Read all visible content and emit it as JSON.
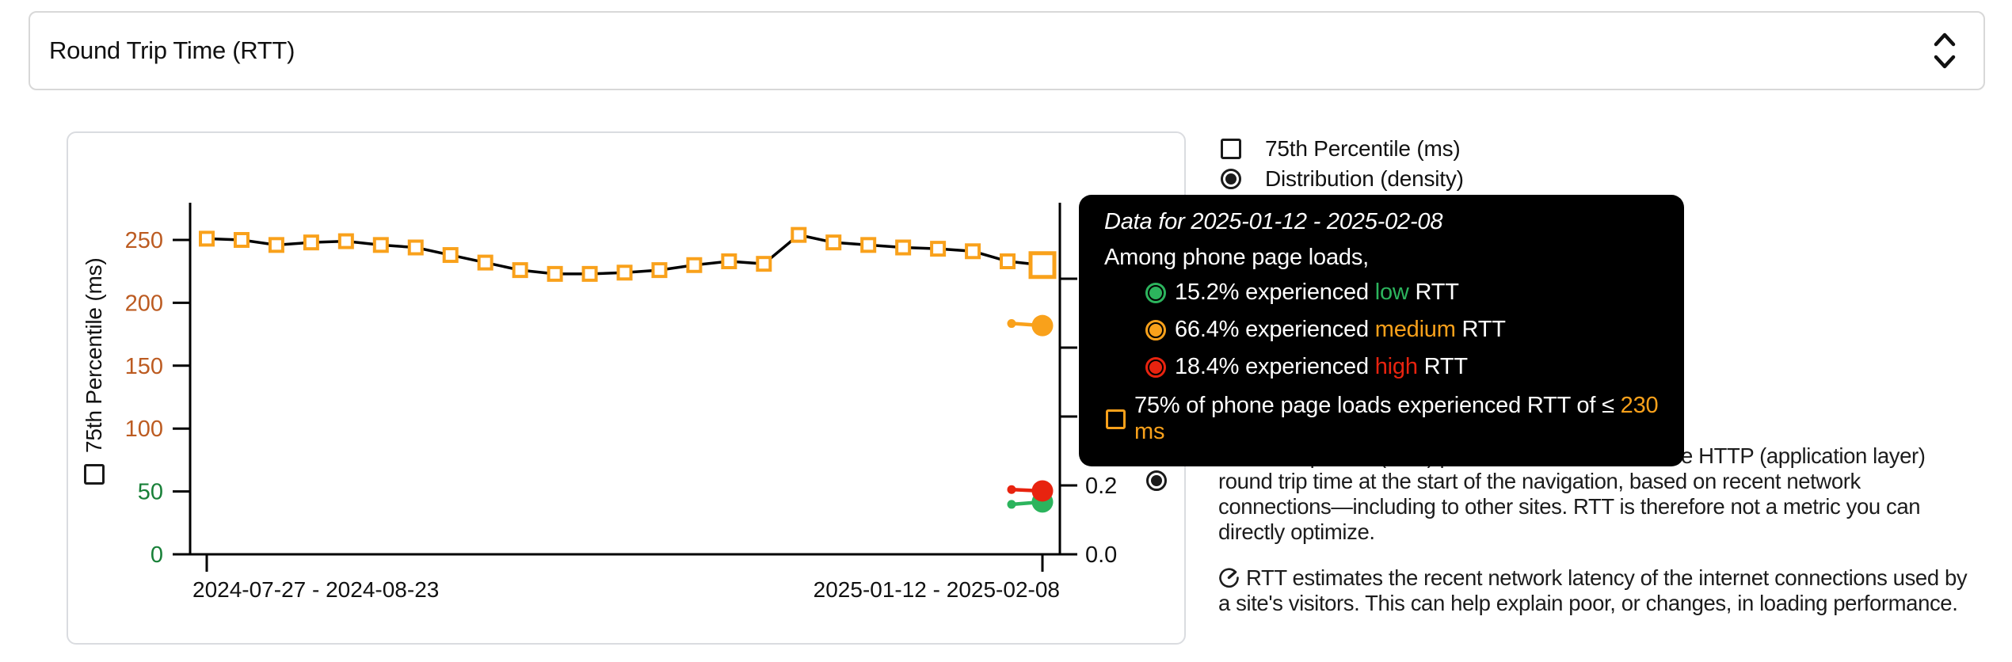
{
  "metric_selector": {
    "label": "Round Trip Time (RTT)"
  },
  "legend": {
    "percentile": {
      "label": "75th Percentile (ms)",
      "checked": false
    },
    "distribution": {
      "label": "Distribution (density)",
      "selected": true
    }
  },
  "chart_data": {
    "type": "line",
    "x": {
      "tick_labels": [
        "2024-07-27 - 2024-08-23",
        "2025-01-12 - 2025-02-08"
      ],
      "num_periods": 25
    },
    "y_left": {
      "label": "75th Percentile (ms)",
      "ticks": [
        0,
        50,
        100,
        150,
        200,
        250
      ],
      "tick_colors": [
        "#188038",
        "#188038",
        "#BC5B21",
        "#BC5B21",
        "#BC5B21",
        "#BC5B21"
      ],
      "range": [
        0,
        283
      ]
    },
    "y_right": {
      "label": "Distribution (density)",
      "ticks": [
        "0.0",
        "0.2",
        "0.4",
        "0.6",
        "0.8"
      ],
      "range": [
        0,
        1.02
      ]
    },
    "series": [
      {
        "name": "75th Percentile (ms)",
        "marker": "square",
        "line_color": "#000000",
        "marker_color": "#F9A11B",
        "values": [
          251,
          250,
          246,
          248,
          249,
          246,
          244,
          238,
          232,
          226,
          223,
          223,
          224,
          226,
          230,
          233,
          231,
          254,
          248,
          246,
          244,
          243,
          241,
          233,
          230
        ]
      }
    ],
    "density_series": [
      {
        "name": "medium",
        "color": "#F9A11B",
        "prev": 0.67,
        "current": 0.664
      },
      {
        "name": "low",
        "color": "#2CB45D",
        "prev": 0.145,
        "current": 0.152
      },
      {
        "name": "high",
        "color": "#E8230F",
        "prev": 0.188,
        "current": 0.184
      }
    ],
    "selected_period": "2025-01-12 - 2025-02-08",
    "selected_p75_ms": 230
  },
  "tooltip": {
    "title": "Data for 2025-01-12 - 2025-02-08",
    "subtitle": "Among phone page loads,",
    "rows": [
      {
        "pct": "15.2%",
        "mid": " experienced ",
        "category": "low",
        "tail": " RTT",
        "color": "#2CB45D"
      },
      {
        "pct": "66.4%",
        "mid": " experienced ",
        "category": "medium",
        "tail": " RTT",
        "color": "#F9A11B"
      },
      {
        "pct": "18.4%",
        "mid": " experienced ",
        "category": "high",
        "tail": " RTT",
        "color": "#E8230F"
      }
    ],
    "threshold": {
      "prefix": "75% of phone page loads experienced RTT of ≤ ",
      "value": "230 ms",
      "value_color": "#F9A11B"
    }
  },
  "description": {
    "link_text": "Round Trip Time (RTT)",
    "p1_rest": " provides an estimate of the HTTP (application layer) round trip time at the start of the navigation, based on recent network connections—including to other sites. RTT is therefore not a metric you can directly optimize.",
    "p2": "RTT estimates the recent network latency of the internet connections used by a site's visitors. This can help explain poor, or changes, in loading performance."
  },
  "colors": {
    "low": "#2CB45D",
    "medium": "#F9A11B",
    "high": "#E8230F",
    "axis_low_tick": "#188038",
    "axis_mid_tick": "#BC5B21",
    "line": "#000000",
    "tooltip_bg": "#000000",
    "card_border": "#dadce0"
  }
}
